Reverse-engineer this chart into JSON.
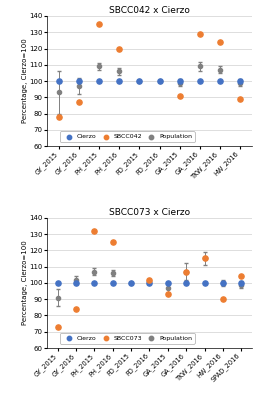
{
  "plot1": {
    "title": "SBCC042 x Cierzo",
    "categories": [
      "GY_2015",
      "GY_2016",
      "PH_2015",
      "PH_2016",
      "FD_2015",
      "FD_2016",
      "GA_2015",
      "GA_2016",
      "TKW_2016",
      "HW_2016"
    ],
    "cierzo": [
      100,
      100,
      100,
      100,
      100,
      100,
      100,
      100,
      100,
      100
    ],
    "sbcc": [
      78,
      87,
      135,
      120,
      null,
      null,
      91,
      129,
      124,
      89
    ],
    "pop_mean": [
      93,
      97,
      109,
      106,
      100,
      100,
      99,
      109,
      107,
      99
    ],
    "pop_err": [
      13,
      5,
      2,
      2,
      0.5,
      0.5,
      2,
      3,
      2,
      2
    ],
    "legend_label": "SBCC042"
  },
  "plot2": {
    "title": "SBCC073 x Cierzo",
    "categories": [
      "GY_2015",
      "GY_2016",
      "PH_2015",
      "PH_2016",
      "FD_2015",
      "FD_2016",
      "GA_2015",
      "GA_2016",
      "TKW_2016",
      "HW_2016",
      "SPAD_2016"
    ],
    "cierzo": [
      100,
      100,
      100,
      100,
      100,
      100,
      100,
      100,
      100,
      100,
      100
    ],
    "sbcc": [
      73,
      84,
      132,
      125,
      null,
      102,
      93,
      107,
      115,
      90,
      104
    ],
    "pop_mean": [
      91,
      102,
      107,
      106,
      100,
      101,
      97,
      107,
      115,
      100,
      99
    ],
    "pop_err": [
      5,
      2,
      2,
      2,
      0.3,
      1,
      3,
      5,
      4,
      2,
      2
    ],
    "legend_label": "SBCC073"
  },
  "colors": {
    "cierzo": "#4472c4",
    "sbcc": "#ed7d31",
    "pop": "#808080"
  },
  "ylim": [
    60,
    140
  ],
  "yticks": [
    60,
    70,
    80,
    90,
    100,
    110,
    120,
    130,
    140
  ],
  "ylabel": "Percentage, Cierzo=100",
  "figsize": [
    2.6,
    4.0
  ],
  "dpi": 100
}
